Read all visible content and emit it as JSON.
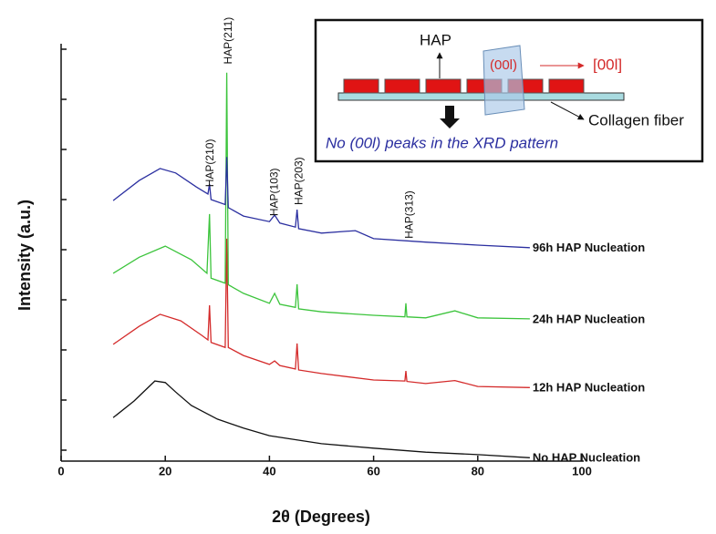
{
  "chart_data": {
    "type": "line",
    "x_label": "2θ (Degrees)",
    "y_label": "Intensity (a.u.)",
    "xlim": [
      0,
      100
    ],
    "xticks": [
      0,
      20,
      40,
      60,
      80,
      100
    ],
    "ylim": [
      -0.2,
      8
    ],
    "yticks": [
      0,
      1,
      2,
      3,
      4,
      5,
      6,
      7,
      8
    ],
    "series": [
      {
        "name": "No HAP Nucleation",
        "color": "#111111",
        "x": [
          10,
          14,
          18,
          20,
          22,
          25,
          30,
          35,
          40,
          50,
          60,
          70,
          80,
          90
        ],
        "values": [
          0.65,
          0.98,
          1.38,
          1.35,
          1.16,
          0.89,
          0.62,
          0.44,
          0.29,
          0.13,
          0.04,
          -0.04,
          -0.09,
          -0.15
        ]
      },
      {
        "name": "12h HAP Nucleation",
        "color": "#d42a2a",
        "x": [
          10,
          15,
          19,
          23,
          27,
          28.2,
          28.5,
          28.8,
          31.5,
          31.8,
          32.1,
          35,
          40,
          41,
          42,
          45,
          45.3,
          45.6,
          50,
          60,
          66,
          66.2,
          66.4,
          70,
          75.6,
          80,
          90
        ],
        "values": [
          2.11,
          2.47,
          2.71,
          2.58,
          2.29,
          2.2,
          2.89,
          2.15,
          2.05,
          4.22,
          2.05,
          1.89,
          1.71,
          1.78,
          1.69,
          1.62,
          2.13,
          1.6,
          1.53,
          1.4,
          1.38,
          1.58,
          1.37,
          1.33,
          1.39,
          1.27,
          1.25
        ]
      },
      {
        "name": "24h HAP Nucleation",
        "color": "#3cc43c",
        "x": [
          10,
          15,
          20,
          25,
          28,
          28.5,
          28.8,
          31.5,
          31.8,
          32.1,
          35,
          40,
          41,
          42,
          45,
          45.3,
          45.6,
          50,
          60,
          66,
          66.2,
          66.4,
          70,
          75.6,
          80,
          90
        ],
        "values": [
          3.53,
          3.85,
          4.07,
          3.8,
          3.53,
          4.71,
          3.43,
          3.33,
          7.53,
          3.3,
          3.13,
          2.93,
          3.13,
          2.91,
          2.85,
          3.31,
          2.82,
          2.76,
          2.69,
          2.66,
          2.93,
          2.66,
          2.64,
          2.78,
          2.64,
          2.62
        ]
      },
      {
        "name": "96h HAP Nucleation",
        "color": "#2b2fa0",
        "x": [
          10,
          15,
          19,
          22,
          26,
          28.2,
          28.5,
          28.8,
          31.5,
          31.8,
          32.1,
          35,
          40,
          41,
          42,
          45,
          45.3,
          45.6,
          50,
          56.5,
          60,
          70,
          80,
          90
        ],
        "values": [
          4.98,
          5.38,
          5.62,
          5.53,
          5.25,
          5.11,
          5.31,
          5.0,
          4.9,
          5.85,
          4.84,
          4.67,
          4.56,
          4.69,
          4.53,
          4.45,
          4.8,
          4.42,
          4.33,
          4.38,
          4.22,
          4.15,
          4.09,
          4.04
        ]
      }
    ],
    "annotations": [
      {
        "text": "HAP(211)",
        "x": 32.2,
        "y": 7.7
      },
      {
        "text": "HAP(210)",
        "x": 28.7,
        "y": 5.25
      },
      {
        "text": "HAP(103)",
        "x": 41,
        "y": 4.67
      },
      {
        "text": "HAP(203)",
        "x": 45.8,
        "y": 4.89
      },
      {
        "text": "HAP(313)",
        "x": 67,
        "y": 4.22
      }
    ]
  },
  "inset": {
    "hap": "HAP",
    "plane": "(00l)",
    "direction": "[00l]",
    "fiber": "Collagen fiber",
    "caption": "No (00l) peaks in the XRD pattern"
  }
}
